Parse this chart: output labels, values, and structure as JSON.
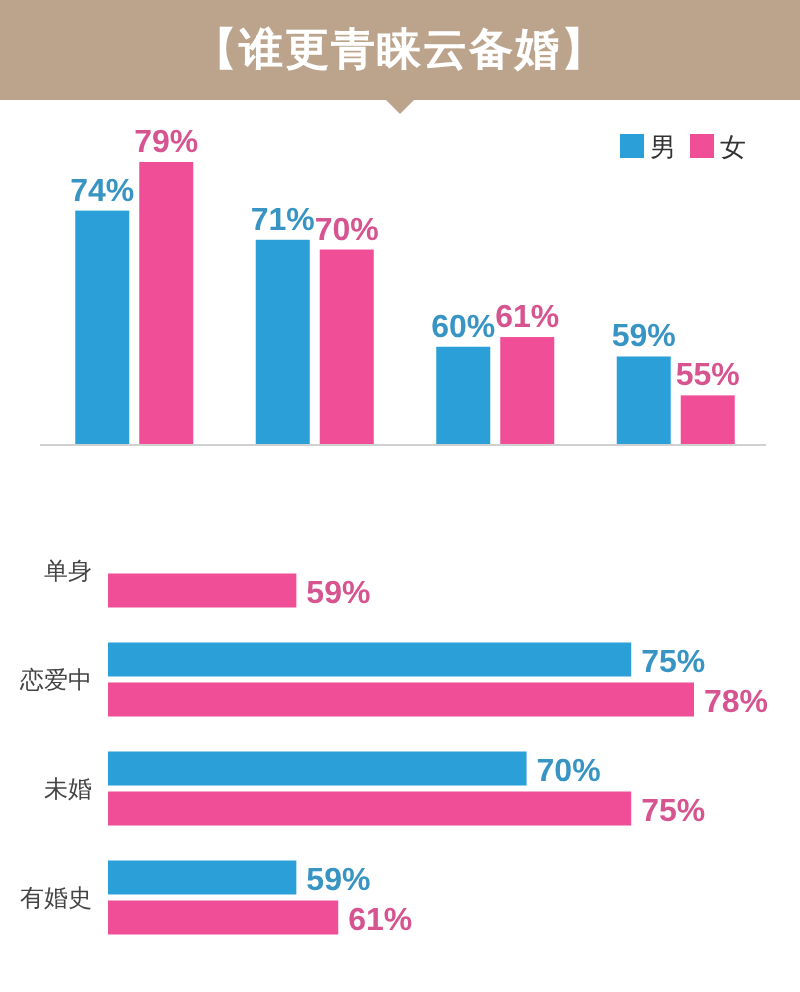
{
  "chart_data": [
    {
      "type": "bar",
      "title": "【谁更青睐云备婚】",
      "categories": [
        null,
        null,
        null,
        null
      ],
      "series": [
        {
          "name": "男",
          "color": "#2b9fd8",
          "values": [
            74,
            71,
            60,
            59
          ],
          "value_labels": [
            "74%",
            "71%",
            "60%",
            "59%"
          ]
        },
        {
          "name": "女",
          "color": "#f04f98",
          "values": [
            79,
            70,
            61,
            55
          ],
          "value_labels": [
            "79%",
            "70%",
            "61%",
            "55%"
          ]
        }
      ],
      "ylim": [
        50,
        79
      ],
      "legend": "top right",
      "tick_labels": false
    },
    {
      "type": "bar",
      "orientation": "horizontal",
      "categories": [
        "单身",
        "恋爱中",
        "未婚",
        "有婚史"
      ],
      "series": [
        {
          "color": "#2b9fd8",
          "values": [
            null,
            75,
            70,
            59
          ],
          "value_labels": [
            null,
            "75%",
            "70%",
            "59%"
          ]
        },
        {
          "color": "#f04f98",
          "values": [
            59,
            78,
            75,
            61
          ],
          "value_labels": [
            "59%",
            "78%",
            "75%",
            "61%"
          ]
        }
      ],
      "xlim": [
        50,
        78
      ],
      "tick_labels": "y"
    }
  ]
}
